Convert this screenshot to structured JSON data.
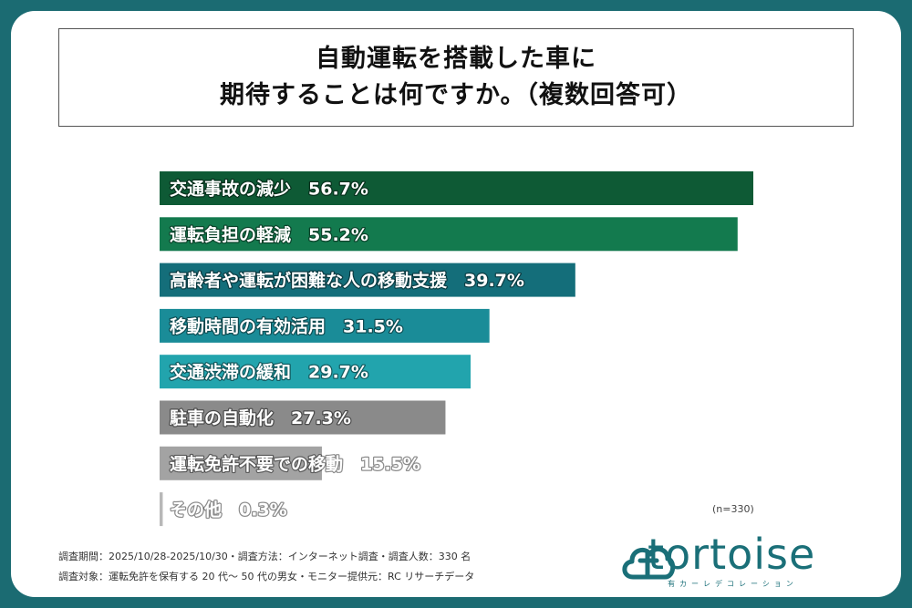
{
  "title": {
    "line1": "自動運転を搭載した車に",
    "line2": "期待することは何ですか。（複数回答可）"
  },
  "chart_data": {
    "type": "bar",
    "orientation": "horizontal",
    "categories": [
      "交通事故の減少",
      "運転負担の軽減",
      "高齢者や運転が困難な人の移動支援",
      "移動時間の有効活用",
      "交通渋滞の緩和",
      "駐車の自動化",
      "運転免許不要での移動",
      "その他"
    ],
    "values": [
      56.7,
      55.2,
      39.7,
      31.5,
      29.7,
      27.3,
      15.5,
      0.3
    ],
    "value_labels": [
      "56.7%",
      "55.2%",
      "39.7%",
      "31.5%",
      "29.7%",
      "27.3%",
      "15.5%",
      "0.3%"
    ],
    "colors": [
      "#0e5a35",
      "#137a4e",
      "#146e7a",
      "#1a8c98",
      "#22a4ad",
      "#8a8a8a",
      "#a3a3a3",
      "#b8b8b8"
    ],
    "unit": "%",
    "xlim": [
      0,
      56.7
    ]
  },
  "sample_note": "(n=330)",
  "footnotes": {
    "line1": "調査期間：2025/10/28-2025/10/30・調査方法：インターネット調査・調査人数：330 名",
    "line2": "調査対象：運転免許を保有する 20 代〜 50 代の男女・モニター提供元：RC リサーチデータ"
  },
  "logo": {
    "wordmark": "tortoise",
    "tagline": "有カーレデコレーション",
    "color": "#1a6f78"
  }
}
